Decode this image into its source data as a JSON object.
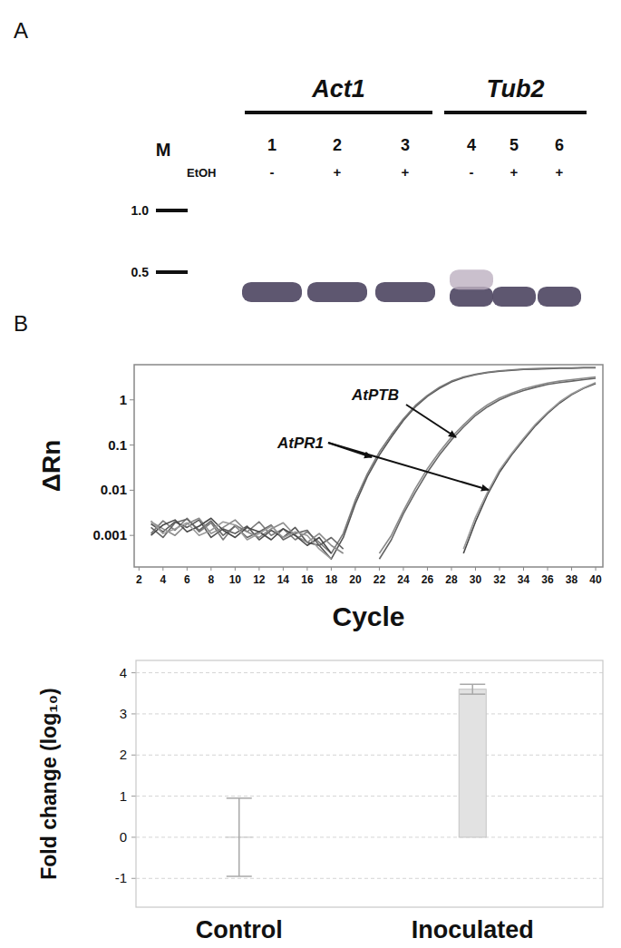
{
  "panel_labels": [
    "A",
    "B"
  ],
  "gel": {
    "marker_label": "M",
    "treatment_label": "EtOH",
    "markers": [
      {
        "value": 1,
        "label": "1.0"
      },
      {
        "value": 0.5,
        "label": "0.5"
      }
    ],
    "genes": [
      {
        "name": "Act1",
        "lanes": [
          1,
          2,
          3
        ]
      },
      {
        "name": "Tub2",
        "lanes": [
          4,
          5,
          6
        ]
      }
    ],
    "lanes": [
      {
        "number": 1,
        "treatment": "-",
        "bands": [
          0.4
        ]
      },
      {
        "number": 2,
        "treatment": "+",
        "bands": [
          0.4
        ]
      },
      {
        "number": 3,
        "treatment": "+",
        "bands": [
          0.4
        ]
      },
      {
        "number": 4,
        "treatment": "-",
        "bands": [
          0.38,
          0.46
        ]
      },
      {
        "number": 5,
        "treatment": "+",
        "bands": [
          0.38
        ]
      },
      {
        "number": 6,
        "treatment": "+",
        "bands": [
          0.38
        ]
      }
    ]
  },
  "chart_data": [
    {
      "type": "line",
      "x_label": "Cycle",
      "y_label": "ΔRn",
      "log": "y",
      "xlim": [
        1.6,
        40.6
      ],
      "ylim": [
        0.0002,
        6
      ],
      "xticks": [
        2,
        4,
        6,
        8,
        10,
        12,
        14,
        16,
        18,
        20,
        22,
        24,
        26,
        28,
        30,
        32,
        34,
        36,
        38,
        40
      ],
      "yticks": [
        0.001,
        0.01,
        0.1,
        1
      ],
      "x": [
        3,
        4,
        5,
        6,
        7,
        8,
        9,
        10,
        11,
        12,
        13,
        14,
        15,
        16,
        17,
        18,
        19,
        20,
        21,
        22,
        23,
        24,
        25,
        26,
        27,
        28,
        29,
        30,
        31,
        32,
        33,
        34,
        35,
        36,
        37,
        38,
        39,
        40
      ],
      "series": [
        {
          "color": "#555555",
          "values": [
            0.0018,
            0.0012,
            0.002,
            0.0015,
            0.0022,
            0.0009,
            0.0014,
            0.0011,
            0.0016,
            0.0008,
            0.0013,
            0.0009,
            0.0015,
            0.0007,
            0.0006,
            0.0003,
            0.0009,
            0.005,
            0.02,
            0.06,
            0.15,
            0.35,
            0.7,
            1.2,
            1.8,
            2.5,
            3.1,
            3.6,
            4.0,
            4.3,
            4.5,
            4.7,
            4.8,
            4.9,
            5.0,
            5.0,
            5.1,
            5.1
          ]
        },
        {
          "color": "#7a7a7a",
          "values": [
            0.0011,
            0.0021,
            0.0013,
            0.0024,
            0.0012,
            0.0019,
            0.0008,
            0.0017,
            0.0012,
            0.002,
            0.001,
            0.0014,
            0.0008,
            0.0012,
            0.0007,
            0.0004,
            0.0011,
            0.006,
            0.023,
            0.07,
            0.17,
            0.38,
            0.75,
            1.25,
            1.9,
            2.6,
            3.2,
            3.7,
            4.1,
            4.4,
            4.6,
            4.8,
            4.9,
            5.0,
            5.1,
            5.1,
            5.2,
            5.2
          ]
        },
        {
          "color": "#666666",
          "values": [
            0.0015,
            0.0009,
            0.0019,
            0.0023,
            0.0013,
            0.0021,
            0.001,
            0.0016,
            0.0009,
            0.0012,
            0.0017,
            0.0008,
            0.0011,
            0.0013,
            0.0006,
            0.0009,
            0.0005,
            null,
            null,
            0.0003,
            0.0008,
            0.003,
            0.009,
            0.025,
            0.06,
            0.13,
            0.25,
            0.45,
            0.7,
            1.0,
            1.3,
            1.6,
            1.9,
            2.2,
            2.4,
            2.6,
            2.8,
            3.0
          ]
        },
        {
          "color": "#8a8a8a",
          "values": [
            0.002,
            0.0014,
            0.001,
            0.0018,
            0.0024,
            0.0011,
            0.0015,
            0.0022,
            0.0012,
            0.0009,
            0.0014,
            0.0019,
            0.001,
            0.0007,
            0.0011,
            0.0006,
            0.0004,
            null,
            null,
            0.0004,
            0.001,
            0.0035,
            0.011,
            0.03,
            0.07,
            0.15,
            0.28,
            0.5,
            0.78,
            1.1,
            1.4,
            1.75,
            2.05,
            2.35,
            2.6,
            2.8,
            3.0,
            3.2
          ]
        },
        {
          "color": "#4a4a4a",
          "values": [
            0.001,
            0.0017,
            0.0022,
            0.0012,
            0.0016,
            0.0024,
            0.0013,
            0.0009,
            0.0015,
            0.0012,
            0.0008,
            0.0014,
            0.001,
            0.0006,
            0.0009,
            0.0004,
            null,
            null,
            null,
            null,
            null,
            null,
            null,
            null,
            null,
            null,
            0.0004,
            0.002,
            0.008,
            0.025,
            0.06,
            0.13,
            0.27,
            0.5,
            0.85,
            1.3,
            1.8,
            2.3
          ]
        },
        {
          "color": "#9a9a9a",
          "values": [
            0.0021,
            0.0011,
            0.0014,
            0.0019,
            0.001,
            0.0013,
            0.002,
            0.0017,
            0.0008,
            0.0011,
            0.0016,
            0.0009,
            0.0012,
            0.001,
            0.0005,
            0.0003,
            null,
            null,
            null,
            null,
            null,
            null,
            null,
            null,
            null,
            null,
            0.0005,
            0.0025,
            0.009,
            0.028,
            0.065,
            0.14,
            0.29,
            0.53,
            0.9,
            1.35,
            1.85,
            2.4
          ]
        }
      ],
      "annotations": [
        {
          "text": "AtPTB"
        },
        {
          "text": "AtPR1"
        }
      ]
    },
    {
      "type": "bar",
      "y_label": "Fold change (log₁₀)",
      "categories": [
        "Control",
        "Inoculated"
      ],
      "values": [
        0,
        3.6
      ],
      "errors": [
        0.95,
        0.12
      ],
      "color": "#e2e2e2",
      "ylim": [
        -1.7,
        4.3
      ],
      "yticks": [
        -1,
        0,
        1,
        2,
        3,
        4
      ],
      "grid": true
    }
  ]
}
